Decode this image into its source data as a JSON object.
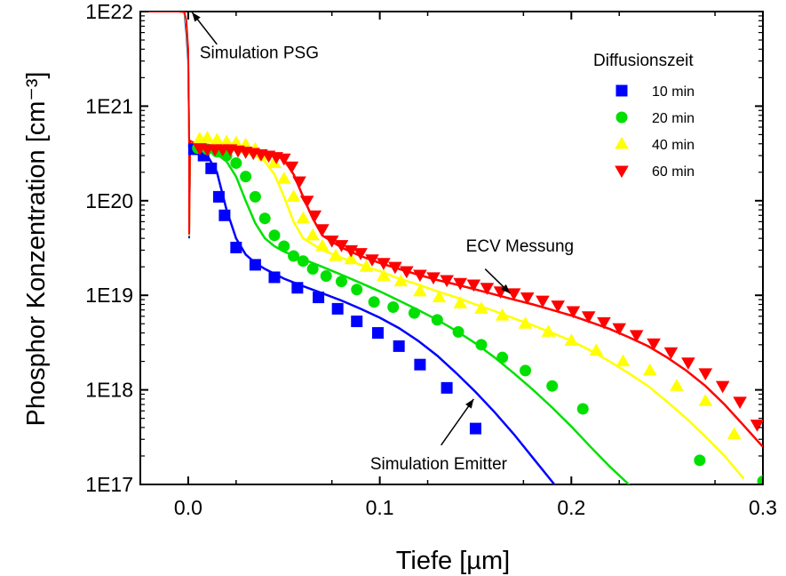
{
  "chart_data": {
    "type": "scatter",
    "xlabel": "Tiefe [µm]",
    "ylabel": "Phosphor Konzentration [cm⁻³]",
    "xlim": [
      -0.025,
      0.3
    ],
    "ylim": [
      1e+17,
      1e+22
    ],
    "yscale": "log",
    "x_ticks": [
      0.0,
      0.1,
      0.2,
      0.3
    ],
    "x_tick_labels": [
      "0.0",
      "0.1",
      "0.2",
      "0.3"
    ],
    "y_ticks": [
      1e+17,
      1e+18,
      1e+19,
      1e+20,
      1e+21,
      1e+22
    ],
    "y_tick_labels": [
      "1E17",
      "1E18",
      "1E19",
      "1E20",
      "1E21",
      "1E22"
    ],
    "grid": false,
    "legend": {
      "title": "Diffusionszeit",
      "position": "top-right"
    },
    "series": [
      {
        "name": "10 min",
        "color": "#0000ff",
        "marker": "square",
        "x": [
          0.003,
          0.008,
          0.012,
          0.016,
          0.019,
          0.025,
          0.035,
          0.045,
          0.057,
          0.068,
          0.078,
          0.088,
          0.099,
          0.11,
          0.121,
          0.135,
          0.15
        ],
        "y": [
          3.5e+20,
          3e+20,
          2.2e+20,
          1.1e+20,
          7e+19,
          3.2e+19,
          2.1e+19,
          1.55e+19,
          1.2e+19,
          9.5e+18,
          7.2e+18,
          5.3e+18,
          4e+18,
          2.9e+18,
          1.85e+18,
          1.05e+18,
          3.9e+17
        ]
      },
      {
        "name": "20 min",
        "color": "#00e000",
        "marker": "circle",
        "x": [
          0.005,
          0.01,
          0.015,
          0.02,
          0.025,
          0.03,
          0.035,
          0.04,
          0.045,
          0.05,
          0.055,
          0.06,
          0.065,
          0.072,
          0.08,
          0.088,
          0.097,
          0.107,
          0.118,
          0.13,
          0.141,
          0.153,
          0.164,
          0.176,
          0.19,
          0.206,
          0.267,
          0.3
        ],
        "y": [
          3.6e+20,
          3.5e+20,
          3.3e+20,
          3e+20,
          2.5e+20,
          1.8e+20,
          1.1e+20,
          6.5e+19,
          4.3e+19,
          3.3e+19,
          2.6e+19,
          2.3e+19,
          1.9e+19,
          1.6e+19,
          1.4e+19,
          1.15e+19,
          8.5e+18,
          7.5e+18,
          6.5e+18,
          5.5e+18,
          4.1e+18,
          3e+18,
          2.2e+18,
          1.6e+18,
          1.1e+18,
          6.3e+17,
          1.8e+17,
          1.08e+17
        ]
      },
      {
        "name": "40 min",
        "color": "#ffff00",
        "marker": "triangle-up",
        "x": [
          0.006,
          0.01,
          0.015,
          0.02,
          0.025,
          0.03,
          0.035,
          0.04,
          0.045,
          0.05,
          0.055,
          0.06,
          0.065,
          0.07,
          0.077,
          0.085,
          0.093,
          0.102,
          0.111,
          0.121,
          0.131,
          0.142,
          0.153,
          0.164,
          0.176,
          0.188,
          0.2,
          0.213,
          0.227,
          0.241,
          0.255,
          0.27,
          0.285
        ],
        "y": [
          4.5e+20,
          4.6e+20,
          4.4e+20,
          4.2e+20,
          4.1e+20,
          3.9e+20,
          3.5e+20,
          3e+20,
          2.5e+20,
          1.7e+20,
          1.1e+20,
          6.5e+19,
          4.3e+19,
          3.3e+19,
          2.6e+19,
          2.4e+19,
          2e+19,
          1.6e+19,
          1.4e+19,
          1.1e+19,
          9.5e+18,
          8.2e+18,
          7.2e+18,
          6.1e+18,
          5e+18,
          4.1e+18,
          3.3e+18,
          2.6e+18,
          2e+18,
          1.6e+18,
          1.1e+18,
          7.6e+17,
          3.4e+17
        ]
      },
      {
        "name": "60 min",
        "color": "#ff0000",
        "marker": "triangle-down",
        "x": [
          0.006,
          0.01,
          0.014,
          0.018,
          0.022,
          0.026,
          0.03,
          0.034,
          0.038,
          0.042,
          0.046,
          0.05,
          0.054,
          0.058,
          0.062,
          0.066,
          0.07,
          0.075,
          0.08,
          0.085,
          0.09,
          0.096,
          0.102,
          0.108,
          0.114,
          0.121,
          0.128,
          0.135,
          0.142,
          0.149,
          0.156,
          0.163,
          0.17,
          0.177,
          0.185,
          0.193,
          0.201,
          0.209,
          0.217,
          0.225,
          0.234,
          0.243,
          0.252,
          0.261,
          0.27,
          0.279,
          0.288,
          0.297
        ],
        "y": [
          3.6e+20,
          3.5e+20,
          3.5e+20,
          3.5e+20,
          3.5e+20,
          3.4e+20,
          3.3e+20,
          3.2e+20,
          3.1e+20,
          3e+20,
          2.9e+20,
          2.8e+20,
          2.3e+20,
          1.6e+20,
          1e+20,
          7e+19,
          5e+19,
          3.8e+19,
          3.4e+19,
          3e+19,
          2.8e+19,
          2.4e+19,
          2.2e+19,
          2e+19,
          1.8e+19,
          1.65e+19,
          1.55e+19,
          1.45e+19,
          1.35e+19,
          1.3e+19,
          1.2e+19,
          1.1e+19,
          1.05e+19,
          9.5e+18,
          8.8e+18,
          7.8e+18,
          6.8e+18,
          6e+18,
          5.2e+18,
          4.5e+18,
          3.8e+18,
          3.1e+18,
          2.5e+18,
          1.95e+18,
          1.5e+18,
          1.1e+18,
          7.5e+17,
          4.3e+17
        ]
      }
    ],
    "fit_lines": [
      {
        "series": "10 min",
        "color": "#0000ff",
        "x": [
          0.0,
          0.005,
          0.01,
          0.015,
          0.02,
          0.025,
          0.03,
          0.035,
          0.04,
          0.05,
          0.06,
          0.07,
          0.08,
          0.09,
          0.1,
          0.11,
          0.12,
          0.13,
          0.14,
          0.15,
          0.16,
          0.17,
          0.18,
          0.19,
          0.195
        ],
        "y": [
          3.8e+20,
          3.5e+20,
          3e+20,
          2e+20,
          8e+19,
          4e+19,
          2.7e+19,
          2.2e+19,
          1.9e+19,
          1.5e+19,
          1.25e+19,
          1.05e+19,
          8.8e+18,
          7.2e+18,
          5.8e+18,
          4.5e+18,
          3.3e+18,
          2.3e+18,
          1.5e+18,
          9.5e+17,
          5.8e+17,
          3.4e+17,
          1.9e+17,
          1.07e+17,
          8e+16
        ]
      },
      {
        "series": "20 min",
        "color": "#00e000",
        "x": [
          0.0,
          0.005,
          0.01,
          0.015,
          0.02,
          0.025,
          0.03,
          0.035,
          0.04,
          0.045,
          0.05,
          0.06,
          0.07,
          0.08,
          0.09,
          0.1,
          0.11,
          0.12,
          0.13,
          0.14,
          0.15,
          0.16,
          0.17,
          0.18,
          0.19,
          0.2,
          0.21,
          0.22,
          0.23,
          0.235
        ],
        "y": [
          3.8e+20,
          3.6e+20,
          3.4e+20,
          3.1e+20,
          2.6e+20,
          1.8e+20,
          1e+20,
          5.8e+19,
          4e+19,
          3.3e+19,
          2.9e+19,
          2.4e+19,
          2e+19,
          1.65e+19,
          1.35e+19,
          1.1e+19,
          8.8e+18,
          7e+18,
          5.5e+18,
          4.2e+18,
          3.1e+18,
          2.2e+18,
          1.5e+18,
          1e+18,
          6.5e+17,
          4.1e+17,
          2.5e+17,
          1.55e+17,
          1e+17,
          8e+16
        ]
      },
      {
        "series": "40 min",
        "color": "#ffff00",
        "x": [
          0.0,
          0.005,
          0.01,
          0.015,
          0.02,
          0.025,
          0.03,
          0.035,
          0.04,
          0.045,
          0.05,
          0.055,
          0.06,
          0.07,
          0.08,
          0.09,
          0.1,
          0.11,
          0.12,
          0.13,
          0.14,
          0.15,
          0.16,
          0.17,
          0.18,
          0.19,
          0.2,
          0.21,
          0.22,
          0.23,
          0.24,
          0.25,
          0.26,
          0.27,
          0.28,
          0.29
        ],
        "y": [
          3.9e+20,
          3.8e+20,
          3.7e+20,
          3.6e+20,
          3.5e+20,
          3.4e+20,
          3.2e+20,
          3e+20,
          2.6e+20,
          1.9e+20,
          1.1e+20,
          6e+19,
          4e+19,
          3e+19,
          2.5e+19,
          2.1e+19,
          1.8e+19,
          1.5e+19,
          1.3e+19,
          1.1e+19,
          9.5e+18,
          8e+18,
          6.8e+18,
          5.7e+18,
          4.8e+18,
          4e+18,
          3.3e+18,
          2.6e+18,
          2e+18,
          1.5e+18,
          1.1e+18,
          7.5e+17,
          5e+17,
          3.2e+17,
          2e+17,
          1.15e+17
        ]
      },
      {
        "series": "60 min",
        "color": "#ff0000",
        "x": [
          0.0,
          0.005,
          0.01,
          0.015,
          0.02,
          0.025,
          0.03,
          0.035,
          0.04,
          0.045,
          0.05,
          0.055,
          0.06,
          0.065,
          0.07,
          0.08,
          0.09,
          0.1,
          0.11,
          0.12,
          0.13,
          0.14,
          0.15,
          0.16,
          0.17,
          0.18,
          0.19,
          0.2,
          0.21,
          0.22,
          0.23,
          0.24,
          0.25,
          0.26,
          0.27,
          0.28,
          0.29,
          0.3
        ],
        "y": [
          4e+20,
          3.9e+20,
          3.8e+20,
          3.7e+20,
          3.6e+20,
          3.55e+20,
          3.5e+20,
          3.4e+20,
          3.3e+20,
          3.1e+20,
          2.7e+20,
          1.9e+20,
          1.1e+20,
          6.5e+19,
          4.3e+19,
          3.2e+19,
          2.6e+19,
          2.2e+19,
          1.9e+19,
          1.65e+19,
          1.45e+19,
          1.3e+19,
          1.15e+19,
          1.02e+19,
          9e+18,
          8e+18,
          7e+18,
          6.1e+18,
          5.2e+18,
          4.4e+18,
          3.6e+18,
          2.9e+18,
          2.2e+18,
          1.6e+18,
          1.1e+18,
          7e+17,
          4.2e+17,
          2.5e+17
        ]
      }
    ],
    "psg_lines": [
      {
        "color": "#0000ff",
        "x": [
          -0.025,
          -0.005,
          -0.002,
          -0.001,
          0.0,
          0.0005,
          0.0005,
          0.001,
          0.003
        ],
        "y": [
          1e+22,
          1e+22,
          9.8e+21,
          6e+21,
          3e+21,
          4e+20,
          4e+19,
          4e+20,
          3.9e+20
        ]
      },
      {
        "color": "#00e000",
        "x": [
          -0.025,
          -0.005,
          -0.002,
          -0.001,
          0.0,
          0.0005,
          0.0005,
          0.001,
          0.003
        ],
        "y": [
          1e+22,
          1e+22,
          9.9e+21,
          7e+21,
          3.5e+21,
          4.1e+20,
          4.2e+19,
          4.1e+20,
          3.9e+20
        ]
      },
      {
        "color": "#ffff00",
        "x": [
          -0.025,
          -0.005,
          -0.002,
          -0.001,
          0.0,
          0.0005,
          0.0005,
          0.001,
          0.003
        ],
        "y": [
          1e+22,
          1e+22,
          9.9e+21,
          7.5e+21,
          3.8e+21,
          4.2e+20,
          4.3e+19,
          4.2e+20,
          4e+20
        ]
      },
      {
        "color": "#ff0000",
        "x": [
          -0.025,
          -0.005,
          -0.002,
          -0.001,
          0.0,
          0.0005,
          0.0005,
          0.001,
          0.003
        ],
        "y": [
          1e+22,
          1e+22,
          9.9e+21,
          8e+21,
          4e+21,
          4.3e+20,
          4.4e+19,
          4.3e+20,
          4.1e+20
        ]
      }
    ],
    "annotations": [
      {
        "text": "Simulation PSG",
        "text_x": 0.006,
        "text_y": 3.2e+21,
        "arrow_from_x": 0.015,
        "arrow_from_y": 4.5e+21,
        "arrow_to_x": 0.002,
        "arrow_to_y": 9.8e+21
      },
      {
        "text": "ECV Messung",
        "text_x": 0.145,
        "text_y": 2.9e+19,
        "arrow_from_x": 0.155,
        "arrow_from_y": 1.9e+19,
        "arrow_to_x": 0.168,
        "arrow_to_y": 1.05e+19
      },
      {
        "text": "Simulation Emitter",
        "text_x": 0.095,
        "text_y": 1.45e+17,
        "arrow_from_x": 0.132,
        "arrow_from_y": 2.6e+17,
        "arrow_to_x": 0.149,
        "arrow_to_y": 8e+17
      }
    ]
  }
}
